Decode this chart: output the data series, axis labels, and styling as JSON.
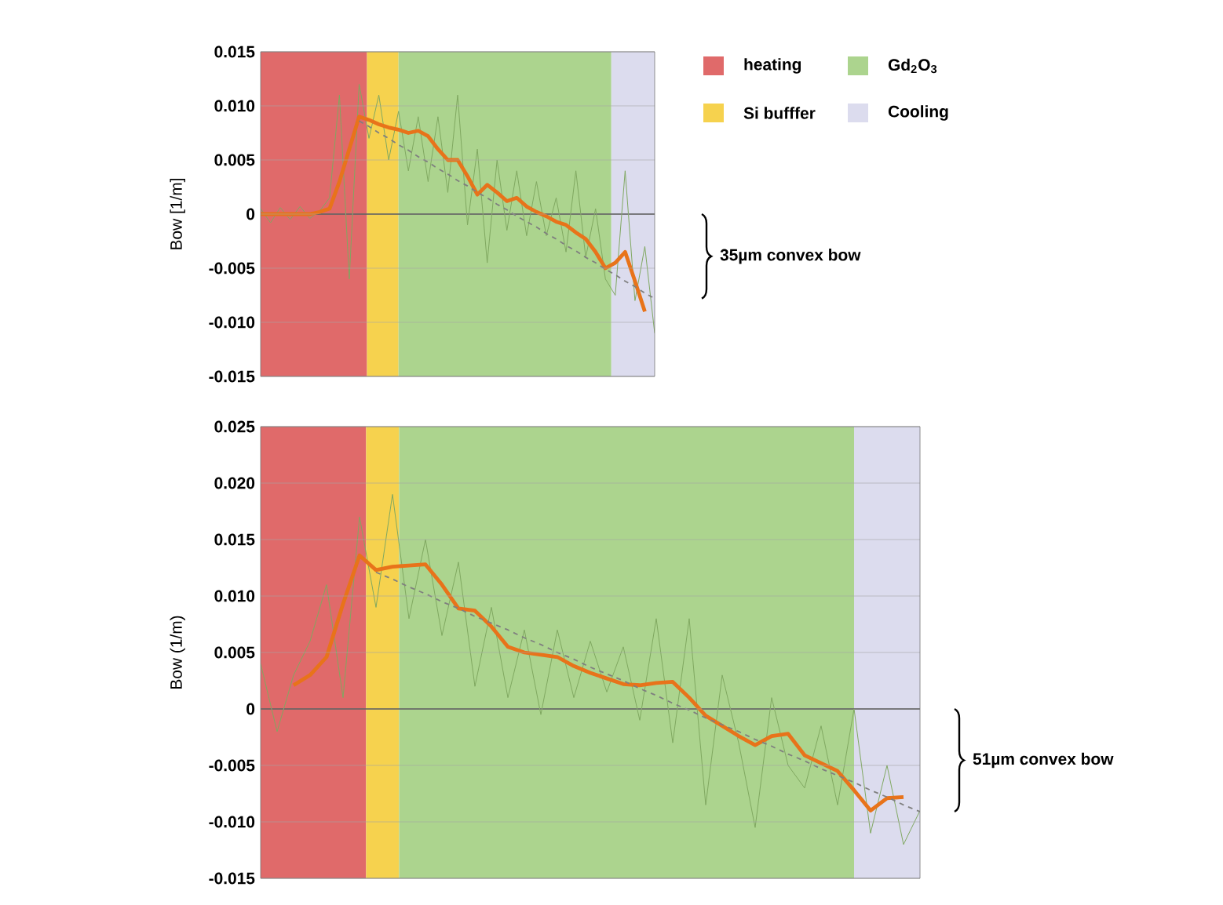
{
  "chart_data": [
    {
      "type": "line",
      "ylabel": "Bow [1/m]",
      "categories": [
        null,
        null,
        null,
        null,
        null,
        null,
        null,
        null,
        null,
        null,
        null,
        null,
        null,
        null,
        null,
        null,
        null,
        null,
        null,
        null,
        null,
        null,
        null,
        null,
        null,
        null,
        null,
        null,
        null,
        null,
        null,
        null,
        null,
        null,
        null,
        null,
        null,
        null,
        null,
        null,
        null
      ],
      "ylim": [
        -0.015,
        0.015
      ],
      "yticks": [
        {
          "value": -0.015,
          "label": "-0.015"
        },
        {
          "value": -0.01,
          "label": "-0.010"
        },
        {
          "value": -0.005,
          "label": "-0.005"
        },
        {
          "value": 0,
          "label": "0"
        },
        {
          "value": 0.005,
          "label": "0.005"
        },
        {
          "value": 0.01,
          "label": "0.010"
        },
        {
          "value": 0.015,
          "label": "0.015"
        }
      ],
      "grid": "y",
      "marker": "none",
      "ref_lines": [
        {
          "axis": "y",
          "value": 0,
          "color": "#404040"
        }
      ],
      "series": [
        {
          "color": "#7fa860",
          "values": [
            0.0005,
            -0.0008,
            0.0006,
            -0.0005,
            0.0007,
            -0.0004,
            0.0003,
            0.0015,
            0.011,
            -0.006,
            0.012,
            0.007,
            0.011,
            0.005,
            0.0095,
            0.004,
            0.009,
            0.003,
            0.009,
            0.002,
            0.011,
            -0.001,
            0.006,
            -0.0045,
            0.005,
            -0.0015,
            0.004,
            -0.002,
            0.003,
            -0.002,
            0.0015,
            -0.0035,
            0.004,
            -0.004,
            0.0005,
            -0.006,
            -0.0075,
            0.004,
            -0.008,
            -0.003,
            -0.011
          ]
        },
        {
          "color": "#e8731a",
          "values": [
            0,
            0,
            0,
            0,
            0,
            0,
            0.0002,
            0.0005,
            0.003,
            0.006,
            0.009,
            0.0087,
            0.0083,
            0.008,
            0.0078,
            0.0075,
            0.0077,
            0.0072,
            0.006,
            0.005,
            0.005,
            0.0035,
            0.0018,
            0.0027,
            0.002,
            0.0012,
            0.0015,
            0.0007,
            0.0002,
            -0.0002,
            -0.0007,
            -0.001,
            -0.0017,
            -0.0023,
            -0.0035,
            -0.005,
            -0.0045,
            -0.0035,
            -0.0062,
            -0.009,
            null
          ]
        },
        {
          "color": "#7f7f7f",
          "line_style": "dashed",
          "values": [
            null,
            null,
            null,
            null,
            null,
            null,
            null,
            null,
            null,
            null,
            0.0086,
            0.0081,
            0.0075,
            0.007,
            0.0064,
            0.0059,
            0.0053,
            0.0048,
            0.0042,
            0.0037,
            0.0031,
            0.0026,
            0.002,
            0.0015,
            0.0009,
            0.0004,
            -0.0002,
            -0.0007,
            -0.0012,
            -0.0018,
            -0.0023,
            -0.0029,
            -0.0034,
            -0.004,
            -0.0045,
            -0.0051,
            -0.0056,
            -0.0062,
            -0.0067,
            -0.0073,
            -0.0078
          ]
        }
      ],
      "annotations": [
        "35µm convex bow",
        "heating",
        "Si bufffer",
        "Gd$_{2}$O$_{3}$",
        "Cooling"
      ]
    },
    {
      "type": "line",
      "ylabel": "Bow (1/m)",
      "categories": [
        null,
        null,
        null,
        null,
        null,
        null,
        null,
        null,
        null,
        null,
        null,
        null,
        null,
        null,
        null,
        null,
        null,
        null,
        null,
        null,
        null,
        null,
        null,
        null,
        null,
        null,
        null,
        null,
        null,
        null,
        null,
        null,
        null,
        null,
        null,
        null,
        null,
        null,
        null,
        null,
        null
      ],
      "ylim": [
        -0.015,
        0.025
      ],
      "yticks": [
        {
          "value": -0.015,
          "label": "-0.015"
        },
        {
          "value": -0.01,
          "label": "-0.010"
        },
        {
          "value": -0.005,
          "label": "-0.005"
        },
        {
          "value": 0,
          "label": "0"
        },
        {
          "value": 0.005,
          "label": "0.005"
        },
        {
          "value": 0.01,
          "label": "0.010"
        },
        {
          "value": 0.015,
          "label": "0.015"
        },
        {
          "value": 0.02,
          "label": "0.020"
        },
        {
          "value": 0.025,
          "label": "0.025"
        }
      ],
      "grid": "y",
      "marker": "none",
      "ref_lines": [
        {
          "axis": "y",
          "value": 0,
          "color": "#404040"
        }
      ],
      "series": [
        {
          "color": "#7fa860",
          "values": [
            0.004,
            -0.002,
            0.003,
            0.006,
            0.011,
            0.001,
            0.017,
            0.009,
            0.019,
            0.008,
            0.015,
            0.0065,
            0.013,
            0.002,
            0.009,
            0.001,
            0.007,
            -0.0005,
            0.007,
            0.001,
            0.006,
            0.0015,
            0.0055,
            -0.001,
            0.008,
            -0.003,
            0.008,
            -0.0085,
            0.003,
            -0.003,
            -0.0105,
            0.001,
            -0.005,
            -0.007,
            -0.0015,
            -0.0085,
            0,
            -0.011,
            -0.005,
            -0.012,
            -0.009
          ]
        },
        {
          "color": "#e8731a",
          "values": [
            null,
            null,
            0.0021,
            0.003,
            0.0046,
            0.0093,
            0.0136,
            0.0123,
            0.0126,
            0.0127,
            0.0128,
            0.011,
            0.0089,
            0.0087,
            0.0073,
            0.0055,
            0.005,
            0.0048,
            0.0046,
            0.0038,
            0.0032,
            0.0027,
            0.0022,
            0.0021,
            0.0023,
            0.0024,
            0.001,
            -0.0006,
            -0.0015,
            -0.0024,
            -0.0032,
            -0.0024,
            -0.0022,
            -0.0041,
            -0.0048,
            -0.0055,
            -0.0072,
            -0.009,
            -0.0079,
            -0.0078,
            null
          ]
        },
        {
          "color": "#7f7f7f",
          "line_style": "dashed",
          "values": [
            null,
            null,
            null,
            null,
            null,
            null,
            null,
            0.0121,
            0.0115,
            0.0108,
            0.0102,
            0.0095,
            0.0089,
            0.0082,
            0.0076,
            0.007,
            0.0063,
            0.0057,
            0.005,
            0.0044,
            0.0037,
            0.0031,
            0.0025,
            0.0018,
            0.0012,
            0.0005,
            -0.0001,
            -0.0008,
            -0.0014,
            -0.002,
            -0.0027,
            -0.0033,
            -0.004,
            -0.0046,
            -0.0053,
            -0.0059,
            -0.0065,
            -0.0072,
            -0.0078,
            -0.0085,
            -0.0091
          ]
        }
      ],
      "annotations": [
        "51µm convex bow"
      ]
    }
  ]
}
